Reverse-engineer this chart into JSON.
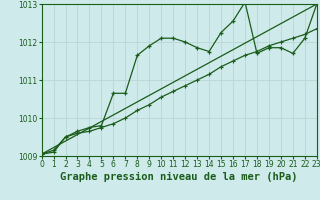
{
  "title": "Graphe pression niveau de la mer (hPa)",
  "bg_color": "#ceeaea",
  "grid_color": "#b8d8d4",
  "line_color": "#1a5c1a",
  "x_min": 0,
  "x_max": 23,
  "y_min": 1009,
  "y_max": 1013,
  "x_ticks": [
    0,
    1,
    2,
    3,
    4,
    5,
    6,
    7,
    8,
    9,
    10,
    11,
    12,
    13,
    14,
    15,
    16,
    17,
    18,
    19,
    20,
    21,
    22,
    23
  ],
  "y_ticks": [
    1009,
    1010,
    1011,
    1012,
    1013
  ],
  "series1_x": [
    0,
    1,
    2,
    3,
    4,
    5,
    6,
    7,
    8,
    9,
    10,
    11,
    12,
    13,
    14,
    15,
    16,
    17,
    18,
    19,
    20,
    21,
    22,
    23
  ],
  "series1_y": [
    1009.05,
    1009.15,
    1009.5,
    1009.65,
    1009.75,
    1009.8,
    1010.65,
    1010.65,
    1011.65,
    1011.9,
    1012.1,
    1012.1,
    1012.0,
    1011.85,
    1011.75,
    1012.25,
    1012.55,
    1013.05,
    1011.7,
    1011.85,
    1011.85,
    1011.7,
    1012.1,
    1013.0
  ],
  "series2_x": [
    0,
    1,
    2,
    3,
    4,
    5,
    6,
    7,
    8,
    9,
    10,
    11,
    12,
    13,
    14,
    15,
    16,
    17,
    18,
    19,
    20,
    21,
    22,
    23
  ],
  "series2_y": [
    1009.05,
    1009.1,
    1009.5,
    1009.6,
    1009.65,
    1009.75,
    1009.85,
    1010.0,
    1010.2,
    1010.35,
    1010.55,
    1010.7,
    1010.85,
    1011.0,
    1011.15,
    1011.35,
    1011.5,
    1011.65,
    1011.75,
    1011.9,
    1012.0,
    1012.1,
    1012.2,
    1012.35
  ],
  "series3_x": [
    0,
    23
  ],
  "series3_y": [
    1009.05,
    1013.0
  ],
  "title_fontsize": 7.5,
  "tick_fontsize": 5.5
}
